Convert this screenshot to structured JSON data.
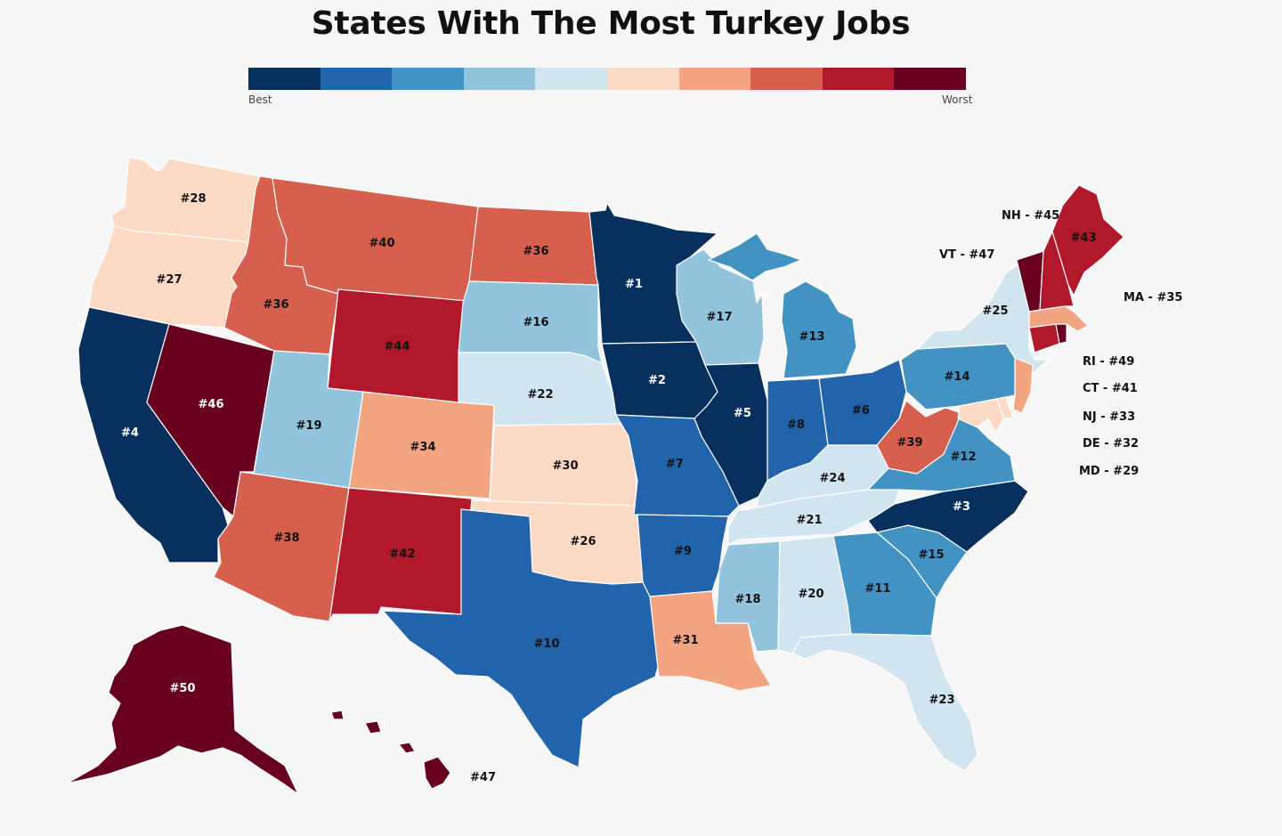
{
  "title": "States With The Most Turkey Jobs",
  "legend": {
    "best_label": "Best",
    "worst_label": "Worst",
    "colors": [
      "#08305e",
      "#2164ab",
      "#4293c4",
      "#93c4de",
      "#d1e5f0",
      "#fddac6",
      "#f3a582",
      "#d6604d",
      "#b2182b",
      "#67001f"
    ]
  },
  "states": {
    "WA": {
      "label": "#28",
      "color": "#fddac6"
    },
    "OR": {
      "label": "#27",
      "color": "#fddac6"
    },
    "CA": {
      "label": "#4",
      "color": "#08305e"
    },
    "NV": {
      "label": "#46",
      "color": "#67001f"
    },
    "ID": {
      "label": "#36",
      "color": "#d6604d"
    },
    "MT": {
      "label": "#40",
      "color": "#d6604d"
    },
    "WY": {
      "label": "#44",
      "color": "#b2182b"
    },
    "UT": {
      "label": "#19",
      "color": "#93c4de"
    },
    "AZ": {
      "label": "#38",
      "color": "#d6604d"
    },
    "CO": {
      "label": "#34",
      "color": "#f3a582"
    },
    "NM": {
      "label": "#42",
      "color": "#b2182b"
    },
    "ND": {
      "label": "#36",
      "color": "#d6604d"
    },
    "SD": {
      "label": "#16",
      "color": "#93c4de"
    },
    "NE": {
      "label": "#22",
      "color": "#d1e5f0"
    },
    "KS": {
      "label": "#30",
      "color": "#fddac6"
    },
    "OK": {
      "label": "#26",
      "color": "#fddac6"
    },
    "TX": {
      "label": "#10",
      "color": "#2164ab"
    },
    "MN": {
      "label": "#1",
      "color": "#08305e"
    },
    "IA": {
      "label": "#2",
      "color": "#08305e"
    },
    "MO": {
      "label": "#7",
      "color": "#2164ab"
    },
    "AR": {
      "label": "#9",
      "color": "#2164ab"
    },
    "LA": {
      "label": "#31",
      "color": "#f3a582"
    },
    "WI": {
      "label": "#17",
      "color": "#93c4de"
    },
    "IL": {
      "label": "#5",
      "color": "#08305e"
    },
    "MI": {
      "label": "#13",
      "color": "#4293c4"
    },
    "IN": {
      "label": "#8",
      "color": "#2164ab"
    },
    "OH": {
      "label": "#6",
      "color": "#2164ab"
    },
    "KY": {
      "label": "#24",
      "color": "#d1e5f0"
    },
    "TN": {
      "label": "#21",
      "color": "#d1e5f0"
    },
    "MS": {
      "label": "#18",
      "color": "#93c4de"
    },
    "AL": {
      "label": "#20",
      "color": "#d1e5f0"
    },
    "GA": {
      "label": "#11",
      "color": "#4293c4"
    },
    "FL": {
      "label": "#23",
      "color": "#d1e5f0"
    },
    "SC": {
      "label": "#15",
      "color": "#4293c4"
    },
    "NC": {
      "label": "#3",
      "color": "#08305e"
    },
    "VA": {
      "label": "#12",
      "color": "#4293c4"
    },
    "WV": {
      "label": "#39",
      "color": "#d6604d"
    },
    "PA": {
      "label": "#14",
      "color": "#4293c4"
    },
    "NY": {
      "label": "#25",
      "color": "#d1e5f0"
    },
    "ME": {
      "label": "#43",
      "color": "#b2182b"
    },
    "NH": {
      "label": "NH - #45",
      "color": "#b2182b"
    },
    "VT": {
      "label": "VT - #47",
      "color": "#67001f"
    },
    "MA": {
      "label": "MA - #35",
      "color": "#f3a582"
    },
    "RI": {
      "label": "RI - #49",
      "color": "#67001f"
    },
    "CT": {
      "label": "CT - #41",
      "color": "#b2182b"
    },
    "NJ": {
      "label": "NJ - #33",
      "color": "#f3a582"
    },
    "DE": {
      "label": "DE - #32",
      "color": "#fddac6"
    },
    "MD": {
      "label": "MD - #29",
      "color": "#fddac6"
    },
    "AK": {
      "label": "#50",
      "color": "#67001f"
    },
    "HI": {
      "label": "#47",
      "color": "#67001f"
    }
  }
}
